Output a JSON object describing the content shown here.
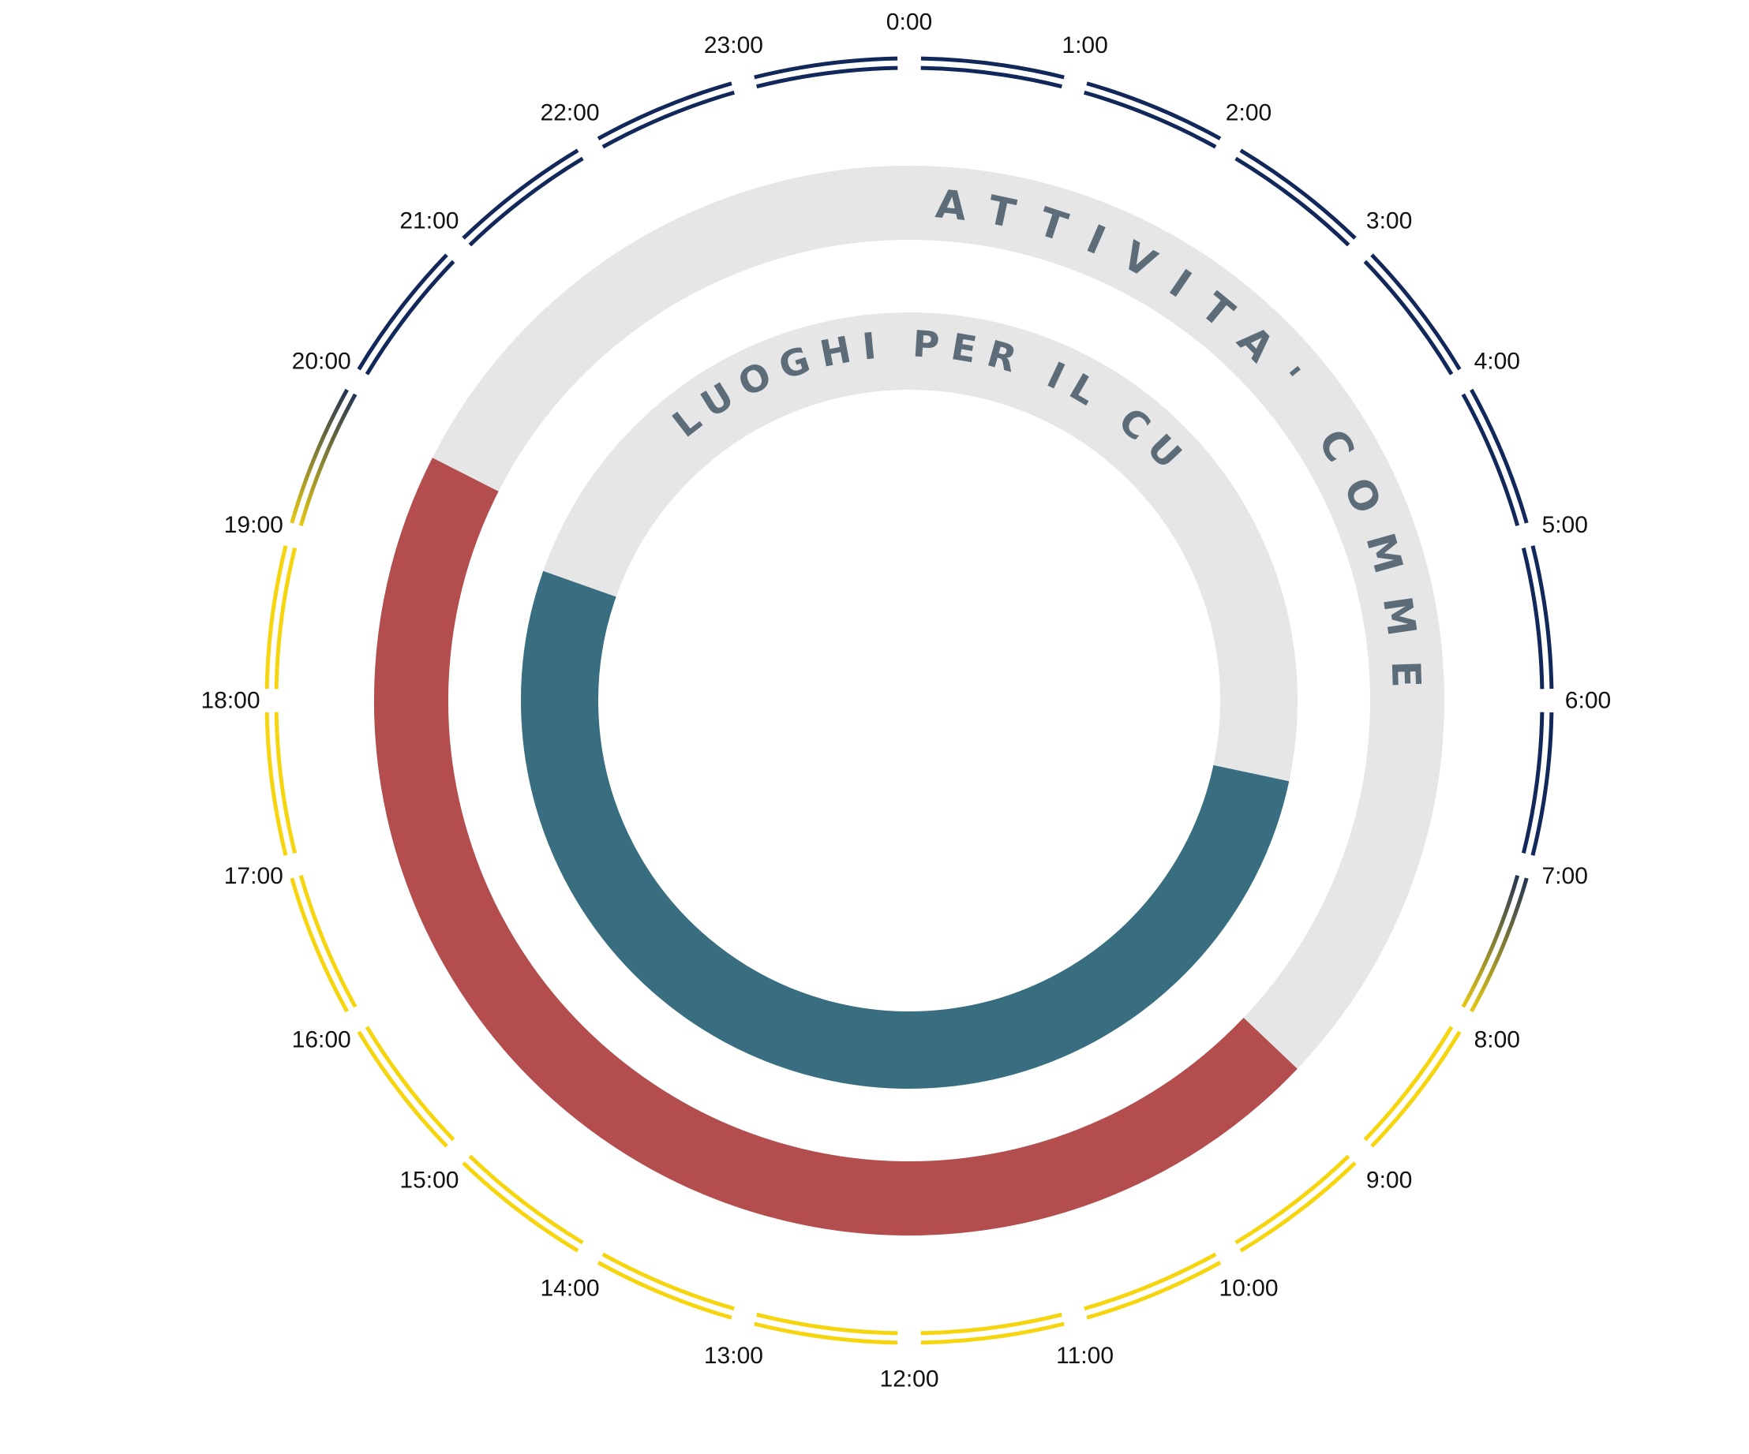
{
  "chart_data": {
    "type": "radial-clock",
    "hours": [
      "0:00",
      "1:00",
      "2:00",
      "3:00",
      "4:00",
      "5:00",
      "6:00",
      "7:00",
      "8:00",
      "9:00",
      "10:00",
      "11:00",
      "12:00",
      "13:00",
      "14:00",
      "15:00",
      "16:00",
      "17:00",
      "18:00",
      "19:00",
      "20:00",
      "21:00",
      "22:00",
      "23:00"
    ],
    "day_period": {
      "night_until": 7,
      "dawn_end": 8,
      "dusk_start": 19,
      "night_from": 20
    },
    "colors": {
      "night": "#13285a",
      "day": "#f6d50f",
      "track": "#e6e6e6",
      "commercial": "#b34d4e",
      "worship": "#386e80",
      "title": "#5c6d79"
    },
    "series": [
      {
        "name": "ATTIVITA' COMMERCIALI",
        "start_hour": 8.9,
        "end_hour": 19.8
      },
      {
        "name": "LUOGHI PER IL CULTO",
        "start_hour": 6.8,
        "end_hour": 19.3
      }
    ]
  }
}
